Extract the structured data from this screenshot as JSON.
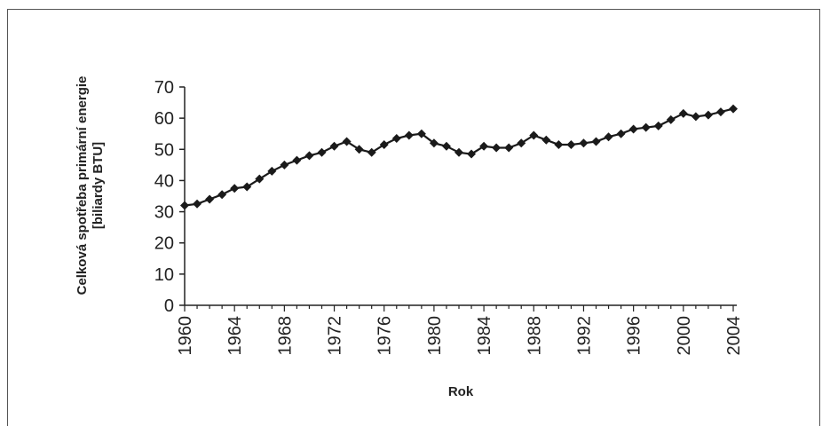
{
  "chart_data": {
    "type": "line",
    "xlabel": "Rok",
    "ylabel_line1": "Celková spotřeba primární energie",
    "ylabel_line2": "[biliardy BTU]",
    "xlim": [
      1960,
      2004
    ],
    "ylim": [
      0,
      70
    ],
    "yticks": [
      0,
      10,
      20,
      30,
      40,
      50,
      60,
      70
    ],
    "xticks": [
      1960,
      1964,
      1968,
      1972,
      1976,
      1980,
      1984,
      1988,
      1992,
      1996,
      2000,
      2004
    ],
    "grid": false,
    "legend": "none",
    "marker": "diamond",
    "color": "#1a1a1a",
    "series": [
      {
        "x": [
          1960,
          1961,
          1962,
          1963,
          1964,
          1965,
          1966,
          1967,
          1968,
          1969,
          1970,
          1971,
          1972,
          1973,
          1974,
          1975,
          1976,
          1977,
          1978,
          1979,
          1980,
          1981,
          1982,
          1983,
          1984,
          1985,
          1986,
          1987,
          1988,
          1989,
          1990,
          1991,
          1992,
          1993,
          1994,
          1995,
          1996,
          1997,
          1998,
          1999,
          2000,
          2001,
          2002,
          2003,
          2004
        ],
        "values": [
          32.0,
          32.5,
          34.0,
          35.5,
          37.5,
          38.0,
          40.5,
          43.0,
          45.0,
          46.5,
          48.0,
          49.0,
          51.0,
          52.5,
          50.0,
          49.0,
          51.5,
          53.5,
          54.5,
          55.0,
          52.0,
          51.0,
          49.0,
          48.5,
          51.0,
          50.5,
          50.5,
          52.0,
          54.5,
          53.0,
          51.5,
          51.5,
          52.0,
          52.5,
          54.0,
          55.0,
          56.5,
          57.0,
          57.5,
          59.5,
          61.5,
          60.5,
          61.0,
          62.0,
          63.0
        ]
      }
    ]
  }
}
